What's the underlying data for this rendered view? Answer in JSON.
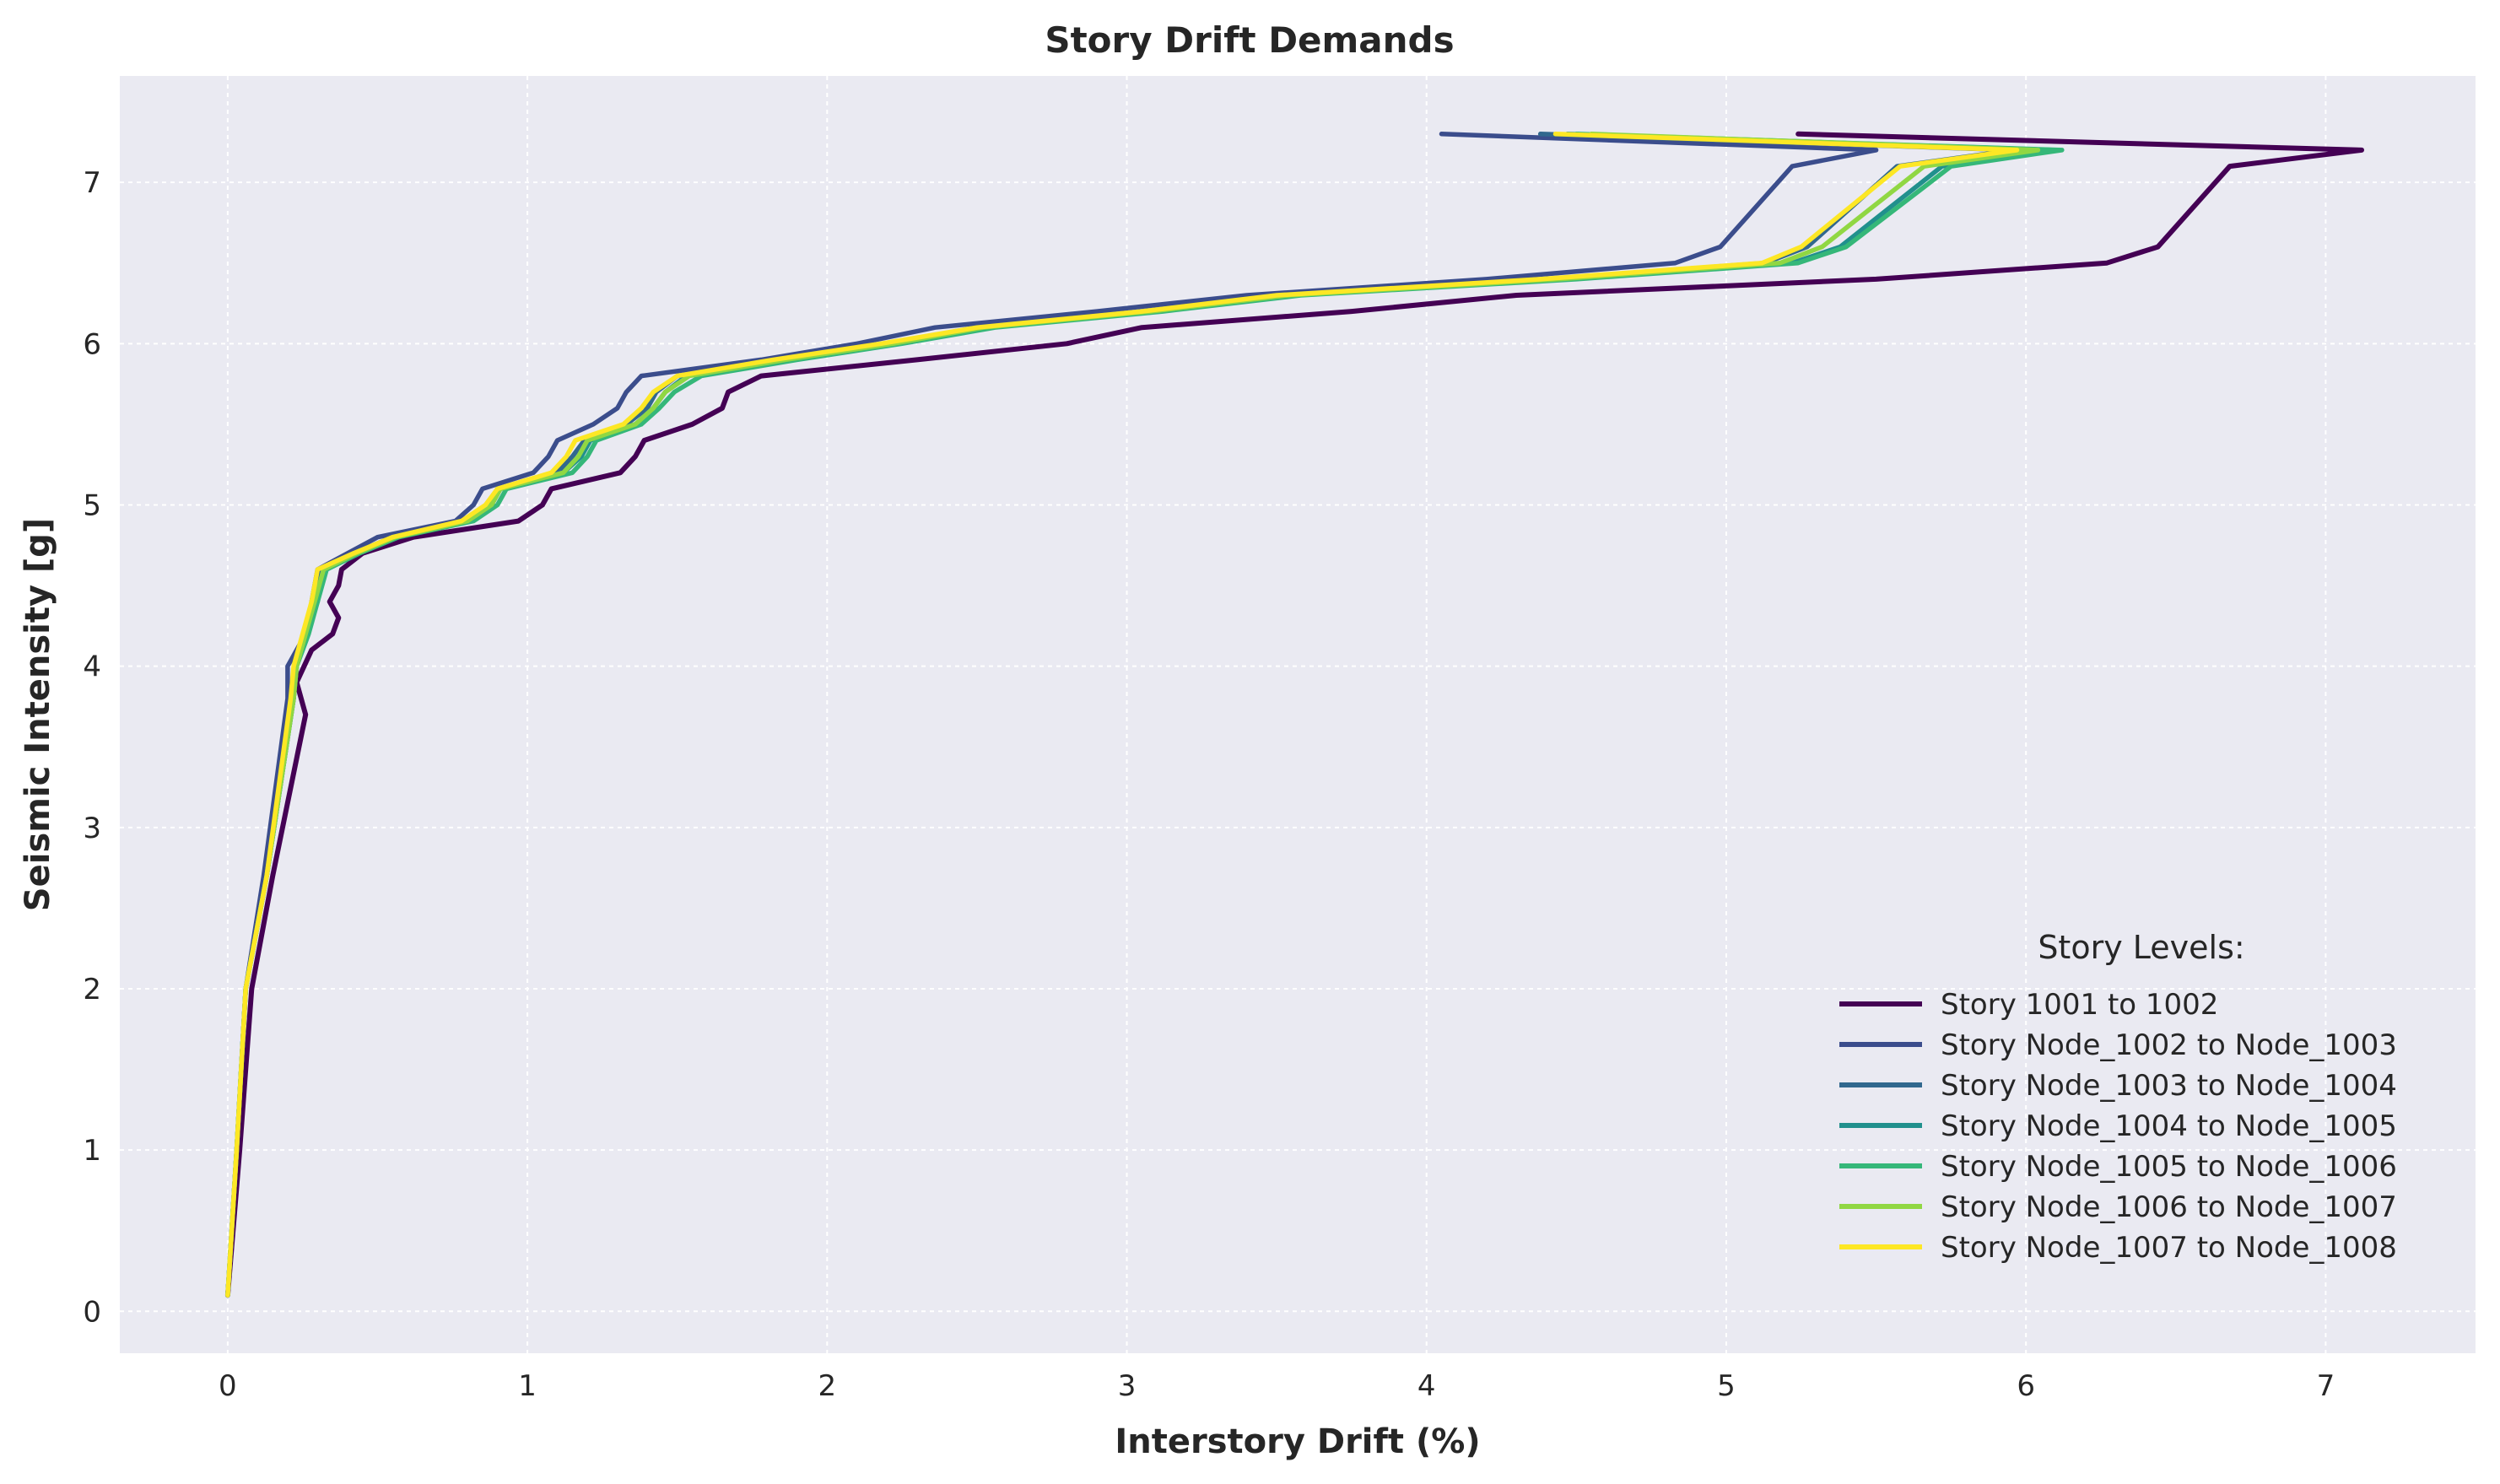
{
  "chart_data": {
    "type": "line",
    "title": "Story Drift Demands",
    "xlabel": "Interstory Drift (%)",
    "ylabel": "Seismic Intensity [g]",
    "xlim": [
      -0.36,
      7.5
    ],
    "ylim": [
      -0.26,
      7.66
    ],
    "xticks": [
      0,
      1,
      2,
      3,
      4,
      5,
      6,
      7
    ],
    "yticks": [
      0,
      1,
      2,
      3,
      4,
      5,
      6,
      7
    ],
    "grid": true,
    "background": "#eaeaf2",
    "legend": {
      "title": "Story Levels:",
      "placement": "lower-right"
    },
    "series": [
      {
        "name": "Story 1001 to 1002",
        "color": "#440154",
        "points": [
          [
            0.0,
            0.1
          ],
          [
            0.04,
            1.0
          ],
          [
            0.08,
            2.0
          ],
          [
            0.15,
            2.7
          ],
          [
            0.26,
            3.7
          ],
          [
            0.23,
            3.9
          ],
          [
            0.28,
            4.1
          ],
          [
            0.35,
            4.2
          ],
          [
            0.37,
            4.3
          ],
          [
            0.34,
            4.4
          ],
          [
            0.37,
            4.5
          ],
          [
            0.38,
            4.6
          ],
          [
            0.45,
            4.7
          ],
          [
            0.62,
            4.8
          ],
          [
            0.97,
            4.9
          ],
          [
            1.05,
            5.0
          ],
          [
            1.08,
            5.1
          ],
          [
            1.31,
            5.2
          ],
          [
            1.36,
            5.3
          ],
          [
            1.39,
            5.4
          ],
          [
            1.55,
            5.5
          ],
          [
            1.65,
            5.6
          ],
          [
            1.67,
            5.7
          ],
          [
            1.78,
            5.8
          ],
          [
            2.3,
            5.9
          ],
          [
            2.8,
            6.0
          ],
          [
            3.05,
            6.1
          ],
          [
            3.75,
            6.2
          ],
          [
            4.3,
            6.3
          ],
          [
            5.5,
            6.4
          ],
          [
            6.27,
            6.5
          ],
          [
            6.44,
            6.6
          ],
          [
            6.68,
            7.1
          ],
          [
            7.12,
            7.2
          ],
          [
            5.24,
            7.3
          ]
        ]
      },
      {
        "name": "Story Node_1002 to Node_1003",
        "color": "#3b4d8c",
        "points": [
          [
            0.0,
            0.1
          ],
          [
            0.03,
            1.0
          ],
          [
            0.06,
            2.0
          ],
          [
            0.12,
            2.7
          ],
          [
            0.2,
            3.8
          ],
          [
            0.2,
            4.0
          ],
          [
            0.26,
            4.2
          ],
          [
            0.28,
            4.4
          ],
          [
            0.3,
            4.6
          ],
          [
            0.4,
            4.7
          ],
          [
            0.5,
            4.8
          ],
          [
            0.76,
            4.9
          ],
          [
            0.82,
            5.0
          ],
          [
            0.85,
            5.1
          ],
          [
            1.02,
            5.2
          ],
          [
            1.07,
            5.3
          ],
          [
            1.1,
            5.4
          ],
          [
            1.22,
            5.5
          ],
          [
            1.3,
            5.6
          ],
          [
            1.33,
            5.7
          ],
          [
            1.38,
            5.8
          ],
          [
            1.78,
            5.9
          ],
          [
            2.1,
            6.0
          ],
          [
            2.36,
            6.1
          ],
          [
            2.9,
            6.2
          ],
          [
            3.4,
            6.3
          ],
          [
            4.2,
            6.4
          ],
          [
            4.83,
            6.5
          ],
          [
            4.98,
            6.6
          ],
          [
            5.22,
            7.1
          ],
          [
            5.5,
            7.2
          ],
          [
            4.05,
            7.3
          ]
        ]
      },
      {
        "name": "Story Node_1003 to Node_1004",
        "color": "#31688e",
        "points": [
          [
            0.0,
            0.1
          ],
          [
            0.03,
            1.0
          ],
          [
            0.06,
            2.0
          ],
          [
            0.13,
            2.7
          ],
          [
            0.22,
            3.8
          ],
          [
            0.23,
            4.0
          ],
          [
            0.26,
            4.2
          ],
          [
            0.29,
            4.4
          ],
          [
            0.31,
            4.6
          ],
          [
            0.42,
            4.7
          ],
          [
            0.55,
            4.8
          ],
          [
            0.8,
            4.9
          ],
          [
            0.87,
            5.0
          ],
          [
            0.9,
            5.1
          ],
          [
            1.1,
            5.2
          ],
          [
            1.15,
            5.3
          ],
          [
            1.19,
            5.4
          ],
          [
            1.33,
            5.5
          ],
          [
            1.4,
            5.6
          ],
          [
            1.43,
            5.7
          ],
          [
            1.5,
            5.8
          ],
          [
            1.85,
            5.9
          ],
          [
            2.2,
            6.0
          ],
          [
            2.5,
            6.1
          ],
          [
            3.05,
            6.2
          ],
          [
            3.5,
            6.3
          ],
          [
            4.4,
            6.4
          ],
          [
            5.13,
            6.5
          ],
          [
            5.27,
            6.6
          ],
          [
            5.57,
            7.1
          ],
          [
            5.96,
            7.2
          ],
          [
            4.38,
            7.3
          ]
        ]
      },
      {
        "name": "Story Node_1004 to Node_1005",
        "color": "#21908d",
        "points": [
          [
            0.0,
            0.1
          ],
          [
            0.03,
            1.0
          ],
          [
            0.06,
            2.0
          ],
          [
            0.13,
            2.7
          ],
          [
            0.22,
            3.8
          ],
          [
            0.23,
            4.0
          ],
          [
            0.26,
            4.2
          ],
          [
            0.3,
            4.4
          ],
          [
            0.32,
            4.6
          ],
          [
            0.43,
            4.7
          ],
          [
            0.56,
            4.8
          ],
          [
            0.81,
            4.9
          ],
          [
            0.88,
            5.0
          ],
          [
            0.91,
            5.1
          ],
          [
            1.12,
            5.2
          ],
          [
            1.18,
            5.3
          ],
          [
            1.21,
            5.4
          ],
          [
            1.36,
            5.5
          ],
          [
            1.42,
            5.6
          ],
          [
            1.46,
            5.7
          ],
          [
            1.53,
            5.8
          ],
          [
            1.87,
            5.9
          ],
          [
            2.23,
            6.0
          ],
          [
            2.53,
            6.1
          ],
          [
            3.1,
            6.2
          ],
          [
            3.55,
            6.3
          ],
          [
            4.45,
            6.4
          ],
          [
            5.22,
            6.5
          ],
          [
            5.38,
            6.6
          ],
          [
            5.72,
            7.1
          ],
          [
            6.1,
            7.2
          ],
          [
            4.47,
            7.3
          ]
        ]
      },
      {
        "name": "Story Node_1005 to Node_1006",
        "color": "#35b779",
        "points": [
          [
            0.0,
            0.1
          ],
          [
            0.03,
            1.0
          ],
          [
            0.06,
            2.0
          ],
          [
            0.13,
            2.7
          ],
          [
            0.22,
            3.8
          ],
          [
            0.23,
            4.0
          ],
          [
            0.27,
            4.2
          ],
          [
            0.3,
            4.4
          ],
          [
            0.33,
            4.6
          ],
          [
            0.44,
            4.7
          ],
          [
            0.57,
            4.8
          ],
          [
            0.82,
            4.9
          ],
          [
            0.9,
            5.0
          ],
          [
            0.93,
            5.1
          ],
          [
            1.15,
            5.2
          ],
          [
            1.2,
            5.3
          ],
          [
            1.23,
            5.4
          ],
          [
            1.38,
            5.5
          ],
          [
            1.44,
            5.6
          ],
          [
            1.49,
            5.7
          ],
          [
            1.58,
            5.8
          ],
          [
            1.9,
            5.9
          ],
          [
            2.25,
            6.0
          ],
          [
            2.56,
            6.1
          ],
          [
            3.12,
            6.2
          ],
          [
            3.58,
            6.3
          ],
          [
            4.5,
            6.4
          ],
          [
            5.24,
            6.5
          ],
          [
            5.4,
            6.6
          ],
          [
            5.75,
            7.1
          ],
          [
            6.12,
            7.2
          ],
          [
            4.5,
            7.3
          ]
        ]
      },
      {
        "name": "Story Node_1006 to Node_1007",
        "color": "#90d743",
        "points": [
          [
            0.0,
            0.1
          ],
          [
            0.03,
            1.0
          ],
          [
            0.06,
            2.0
          ],
          [
            0.13,
            2.7
          ],
          [
            0.22,
            3.8
          ],
          [
            0.23,
            4.0
          ],
          [
            0.26,
            4.2
          ],
          [
            0.29,
            4.4
          ],
          [
            0.32,
            4.6
          ],
          [
            0.43,
            4.7
          ],
          [
            0.56,
            4.8
          ],
          [
            0.8,
            4.9
          ],
          [
            0.88,
            5.0
          ],
          [
            0.91,
            5.1
          ],
          [
            1.12,
            5.2
          ],
          [
            1.17,
            5.3
          ],
          [
            1.2,
            5.4
          ],
          [
            1.36,
            5.5
          ],
          [
            1.42,
            5.6
          ],
          [
            1.46,
            5.7
          ],
          [
            1.54,
            5.8
          ],
          [
            1.86,
            5.9
          ],
          [
            2.22,
            6.0
          ],
          [
            2.52,
            6.1
          ],
          [
            3.08,
            6.2
          ],
          [
            3.54,
            6.3
          ],
          [
            4.44,
            6.4
          ],
          [
            5.18,
            6.5
          ],
          [
            5.32,
            6.6
          ],
          [
            5.66,
            7.1
          ],
          [
            6.04,
            7.2
          ],
          [
            4.55,
            7.3
          ]
        ]
      },
      {
        "name": "Story Node_1007 to Node_1008",
        "color": "#fde725",
        "points": [
          [
            0.0,
            0.1
          ],
          [
            0.03,
            1.0
          ],
          [
            0.06,
            2.0
          ],
          [
            0.13,
            2.7
          ],
          [
            0.21,
            3.8
          ],
          [
            0.22,
            4.0
          ],
          [
            0.25,
            4.2
          ],
          [
            0.28,
            4.4
          ],
          [
            0.3,
            4.6
          ],
          [
            0.42,
            4.7
          ],
          [
            0.55,
            4.8
          ],
          [
            0.78,
            4.9
          ],
          [
            0.86,
            5.0
          ],
          [
            0.9,
            5.1
          ],
          [
            1.08,
            5.2
          ],
          [
            1.13,
            5.3
          ],
          [
            1.16,
            5.4
          ],
          [
            1.32,
            5.5
          ],
          [
            1.38,
            5.6
          ],
          [
            1.42,
            5.7
          ],
          [
            1.5,
            5.8
          ],
          [
            1.82,
            5.9
          ],
          [
            2.18,
            6.0
          ],
          [
            2.5,
            6.1
          ],
          [
            3.05,
            6.2
          ],
          [
            3.5,
            6.3
          ],
          [
            4.38,
            6.4
          ],
          [
            5.12,
            6.5
          ],
          [
            5.25,
            6.6
          ],
          [
            5.58,
            7.1
          ],
          [
            5.97,
            7.2
          ],
          [
            4.43,
            7.3
          ]
        ]
      }
    ]
  }
}
